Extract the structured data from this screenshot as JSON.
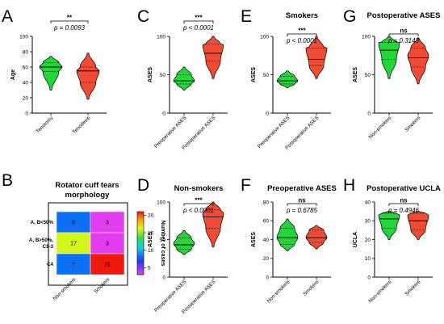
{
  "chart_data": [
    {
      "id": "A",
      "type": "violin",
      "title": "",
      "ylabel": "Age",
      "ylim": [
        0,
        100
      ],
      "yticks": [
        0,
        20,
        40,
        60,
        80,
        100
      ],
      "categories": [
        "Tenotomy",
        "Tenodesis"
      ],
      "series": [
        {
          "color": "#22d63a",
          "min": 30,
          "q1": 54,
          "median": 60,
          "q3": 66,
          "max": 74,
          "peak": 60
        },
        {
          "color": "#ef4b35",
          "min": 18,
          "q1": 40,
          "median": 55,
          "q3": 60,
          "max": 78,
          "peak": 55
        }
      ],
      "significance": "**",
      "pvalue": "p = 0.0093"
    },
    {
      "id": "C",
      "type": "violin",
      "title": "",
      "ylabel": "ASES",
      "ylim": [
        0,
        100
      ],
      "yticks": [
        0,
        50,
        100
      ],
      "categories": [
        "Preoperative ASES",
        "Postoperative ASES"
      ],
      "series": [
        {
          "color": "#22d63a",
          "min": 30,
          "q1": 38,
          "median": 42,
          "q3": 50,
          "max": 60,
          "peak": 42
        },
        {
          "color": "#ef4b35",
          "min": 45,
          "q1": 68,
          "median": 78,
          "q3": 90,
          "max": 100,
          "peak": 90
        }
      ],
      "significance": "***",
      "pvalue": "p < 0.0001"
    },
    {
      "id": "E",
      "type": "violin",
      "title": "Smokers",
      "ylabel": "ASES",
      "ylim": [
        0,
        100
      ],
      "yticks": [
        0,
        50,
        100
      ],
      "categories": [
        "Preoperative ASES",
        "Postoperative ASES"
      ],
      "series": [
        {
          "color": "#22d63a",
          "min": 33,
          "q1": 38,
          "median": 42,
          "q3": 48,
          "max": 55,
          "peak": 42
        },
        {
          "color": "#ef4b35",
          "min": 45,
          "q1": 62,
          "median": 70,
          "q3": 85,
          "max": 100,
          "peak": 85
        }
      ],
      "significance": "***",
      "pvalue": "p < 0.0001"
    },
    {
      "id": "G",
      "type": "violin",
      "title": "Postoperative ASES",
      "ylabel": "ASES",
      "ylim": [
        0,
        100
      ],
      "yticks": [
        0,
        50,
        100
      ],
      "categories": [
        "Non-smokers",
        "Smokers"
      ],
      "series": [
        {
          "color": "#22d63a",
          "min": 45,
          "q1": 70,
          "median": 82,
          "q3": 92,
          "max": 100,
          "peak": 92
        },
        {
          "color": "#ef4b35",
          "min": 38,
          "q1": 60,
          "median": 72,
          "q3": 85,
          "max": 98,
          "peak": 75
        }
      ],
      "significance": "ns",
      "pvalue": "p = 0.3143"
    },
    {
      "id": "D",
      "type": "violin",
      "title": "Non-smokers",
      "ylabel": "ASES",
      "ylim": [
        0,
        100
      ],
      "yticks": [
        0,
        50,
        100
      ],
      "categories": [
        "Preoperative ASES",
        "Postoperative ASES"
      ],
      "series": [
        {
          "color": "#22d63a",
          "min": 30,
          "q1": 37,
          "median": 43,
          "q3": 52,
          "max": 62,
          "peak": 45
        },
        {
          "color": "#ef4b35",
          "min": 40,
          "q1": 65,
          "median": 80,
          "q3": 90,
          "max": 100,
          "peak": 85
        }
      ],
      "significance": "***",
      "pvalue": "p < 0.0001"
    },
    {
      "id": "F",
      "type": "violin",
      "title": "Preoperative ASES",
      "ylabel": "ASES",
      "ylim": [
        0,
        80
      ],
      "yticks": [
        0,
        20,
        40,
        60,
        80
      ],
      "categories": [
        "Non-smokers",
        "Smokers"
      ],
      "series": [
        {
          "color": "#22d63a",
          "min": 28,
          "q1": 35,
          "median": 42,
          "q3": 52,
          "max": 62,
          "peak": 42
        },
        {
          "color": "#ef4b35",
          "min": 30,
          "q1": 37,
          "median": 42,
          "q3": 50,
          "max": 55,
          "peak": 42
        }
      ],
      "significance": "ns",
      "pvalue": "p = 0.6785"
    },
    {
      "id": "H",
      "type": "violin",
      "title": "Postoperative UCLA",
      "ylabel": "UCLA",
      "ylim": [
        0,
        40
      ],
      "yticks": [
        0,
        10,
        20,
        30,
        40
      ],
      "categories": [
        "Non-smokers",
        "Smokers"
      ],
      "series": [
        {
          "color": "#22d63a",
          "min": 20,
          "q1": 26,
          "median": 31,
          "q3": 34,
          "max": 35,
          "peak": 33
        },
        {
          "color": "#ef4b35",
          "min": 20,
          "q1": 25,
          "median": 30,
          "q3": 34,
          "max": 35,
          "peak": 33
        }
      ],
      "significance": "ns",
      "pvalue": "p = 0.4946"
    },
    {
      "id": "B",
      "type": "heatmap",
      "title": "Rotator cuff tears",
      "subtitle": "morphology",
      "rows": [
        "A, B<50%",
        "A, B>50%, C1-3",
        "C4"
      ],
      "row_lines": [
        [
          "A, B<50%"
        ],
        [
          "A, B>50%,",
          "C1-3"
        ],
        [
          "C4"
        ]
      ],
      "columns": [
        "Non-smokers",
        "Smokers"
      ],
      "values": [
        [
          8,
          3
        ],
        [
          17,
          3
        ],
        [
          7,
          21
        ]
      ],
      "cell_colors": [
        [
          "#0d6ff3",
          "#e23ef1"
        ],
        [
          "#d4f51c",
          "#e23ef1"
        ],
        [
          "#0d6ff3",
          "#ee1a10"
        ]
      ],
      "colorbar_label": "Number of cases",
      "colorbar_ticks": [
        5,
        10,
        15,
        20
      ],
      "colorbar_range": [
        3,
        21
      ]
    }
  ],
  "panel_letters": [
    "A",
    "B",
    "C",
    "D",
    "E",
    "F",
    "G",
    "H"
  ]
}
